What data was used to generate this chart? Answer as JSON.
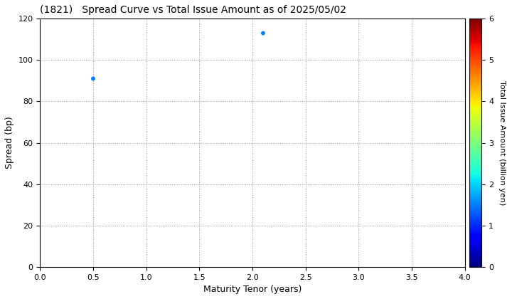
{
  "title": "(1821)   Spread Curve vs Total Issue Amount as of 2025/05/02",
  "xlabel": "Maturity Tenor (years)",
  "ylabel": "Spread (bp)",
  "colorbar_label": "Total Issue Amount (billion yen)",
  "xlim": [
    0.0,
    4.0
  ],
  "ylim": [
    0,
    120
  ],
  "xticks": [
    0.0,
    0.5,
    1.0,
    1.5,
    2.0,
    2.5,
    3.0,
    3.5,
    4.0
  ],
  "yticks": [
    0,
    20,
    40,
    60,
    80,
    100,
    120
  ],
  "colorbar_ticks": [
    0,
    1,
    2,
    3,
    4,
    5,
    6
  ],
  "colorbar_min": 0,
  "colorbar_max": 6,
  "scatter_x": [
    0.5,
    2.1
  ],
  "scatter_y": [
    91,
    113
  ],
  "scatter_values": [
    1.5,
    1.5
  ],
  "marker_size": 18,
  "background_color": "#ffffff",
  "grid_color": "#999999",
  "grid_style": "dotted",
  "title_fontsize": 10,
  "axis_fontsize": 9,
  "tick_fontsize": 8,
  "colorbar_label_fontsize": 8,
  "colorbar_tick_fontsize": 8
}
